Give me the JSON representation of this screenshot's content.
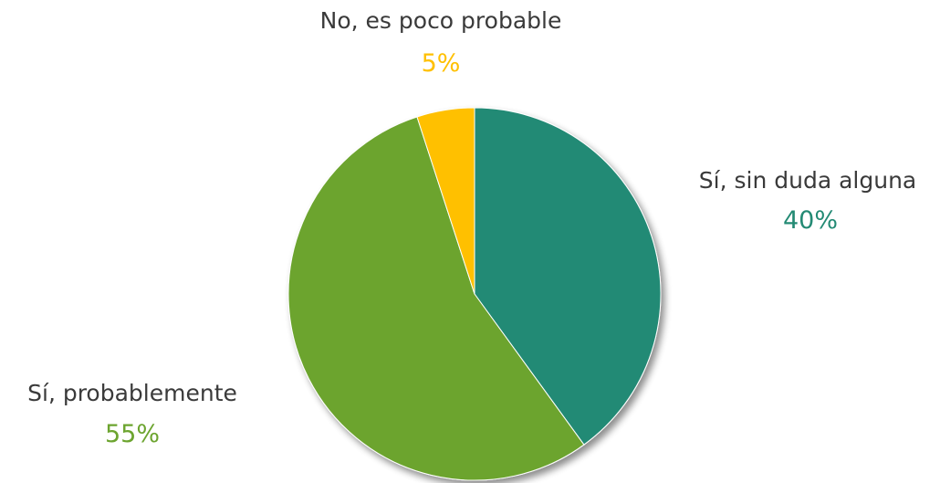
{
  "chart_data": {
    "type": "pie",
    "title": "",
    "start_angle_deg": 0,
    "direction": "clockwise",
    "slices": [
      {
        "label": "Sí, sin duda alguna",
        "value": 40,
        "value_label": "40%",
        "color": "#238a74"
      },
      {
        "label": "Sí, probablemente",
        "value": 55,
        "value_label": "55%",
        "color": "#6ca42f"
      },
      {
        "label": "No, es poco probable",
        "value": 5,
        "value_label": "5%",
        "color": "#ffc000"
      }
    ]
  }
}
